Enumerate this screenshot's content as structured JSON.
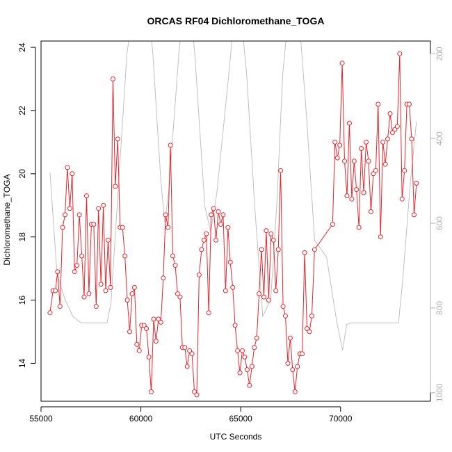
{
  "chart_data": {
    "type": "line",
    "title": "ORCAS RF04 Dichloromethane_TOGA",
    "xlabel": "UTC Seconds",
    "ylabel": "Dichloromethane_TOGA",
    "xlim": [
      55000,
      74500
    ],
    "ylim": [
      12.8,
      24.2
    ],
    "x_ticks": [
      55000,
      60000,
      65000,
      70000
    ],
    "y_ticks": [
      14,
      16,
      18,
      20,
      22,
      24
    ],
    "y2_ticks": [
      200,
      400,
      600,
      800,
      1000
    ],
    "y2lim": [
      1020,
      170
    ],
    "grid": false,
    "legend": "none",
    "colors": {
      "series": "#e8242a",
      "secondary": "#c0c0c0",
      "axis": "#000000",
      "secondary_axis": "#b3b3b3"
    },
    "series": [
      {
        "x": [
          55450,
          55600,
          55720,
          55830,
          55950,
          56080,
          56200,
          56320,
          56440,
          56560,
          56680,
          56800,
          56920,
          57040,
          57160,
          57280,
          57400,
          57520,
          57640,
          57760,
          57880,
          58000,
          58120,
          58240,
          58360,
          58480,
          58600,
          58720,
          58840,
          58960,
          59080,
          59200,
          59320,
          59440,
          59560,
          59680,
          59800,
          59920,
          60040,
          60160,
          60280,
          60400,
          60520,
          60640,
          60760,
          60880,
          61000,
          61120,
          61240,
          61360,
          61480,
          61600,
          61720,
          61840,
          61960,
          62080,
          62200,
          62320,
          62440,
          62560,
          62680,
          62800,
          62920,
          63040,
          63160,
          63280,
          63400,
          63520,
          63640,
          63760,
          63880,
          64000,
          64120,
          64240,
          64360,
          64480,
          64600,
          64720,
          64840,
          64960,
          65080,
          65200,
          65320,
          65440,
          65560,
          65680,
          65800,
          65920,
          66040,
          66160,
          66280,
          66400,
          66520,
          66640,
          66760,
          66880,
          67000,
          67120,
          67240,
          67360,
          67480,
          67600,
          67720,
          67840,
          67960,
          68080,
          68200,
          68320,
          68440,
          68560,
          68700,
          69600,
          69720,
          69840,
          69960,
          70080,
          70200,
          70320,
          70440,
          70560,
          70680,
          70800,
          70920,
          71040,
          71160,
          71280,
          71400,
          71520,
          71640,
          71760,
          71880,
          72000,
          72120,
          72240,
          72360,
          72480,
          72600,
          72720,
          72840,
          72960,
          73080,
          73200,
          73320,
          73440,
          73560,
          73680,
          73800
        ],
        "y": [
          15.6,
          16.3,
          16.3,
          16.9,
          15.8,
          18.3,
          18.7,
          20.2,
          18.9,
          20.0,
          16.9,
          17.1,
          18.7,
          17.4,
          16.1,
          19.3,
          16.2,
          18.4,
          18.4,
          15.8,
          18.9,
          16.5,
          19.0,
          16.3,
          17.9,
          16.4,
          23.0,
          19.6,
          21.1,
          18.3,
          18.3,
          17.4,
          16.0,
          15.0,
          16.2,
          16.4,
          14.6,
          14.4,
          15.2,
          15.2,
          15.1,
          14.2,
          13.1,
          15.4,
          14.7,
          15.4,
          15.3,
          16.7,
          18.7,
          18.3,
          20.9,
          17.4,
          17.1,
          16.2,
          16.1,
          14.5,
          14.5,
          13.9,
          14.4,
          14.3,
          13.1,
          13.0,
          16.8,
          17.6,
          17.9,
          18.1,
          15.6,
          18.7,
          18.9,
          17.9,
          18.8,
          18.4,
          18.7,
          16.3,
          18.3,
          17.2,
          16.4,
          15.2,
          14.4,
          13.7,
          14.4,
          14.2,
          13.8,
          13.3,
          13.9,
          14.5,
          14.8,
          16.2,
          17.6,
          16.1,
          18.2,
          16.0,
          18.1,
          17.9,
          16.3,
          17.6,
          20.1,
          15.8,
          15.5,
          14.0,
          14.8,
          13.8,
          13.1,
          13.9,
          14.3,
          14.3,
          17.5,
          15.1,
          15.0,
          15.5,
          17.6,
          18.4,
          21.0,
          20.5,
          20.9,
          23.5,
          20.4,
          19.3,
          21.6,
          19.2,
          20.4,
          19.5,
          18.3,
          20.8,
          19.4,
          21.0,
          20.4,
          18.8,
          20.0,
          20.1,
          22.2,
          18.0,
          21.0,
          20.3,
          21.1,
          21.9,
          21.3,
          21.4,
          21.5,
          23.8,
          19.2,
          20.1,
          22.2,
          22.2,
          21.1,
          18.7,
          19.7
        ]
      }
    ]
  }
}
